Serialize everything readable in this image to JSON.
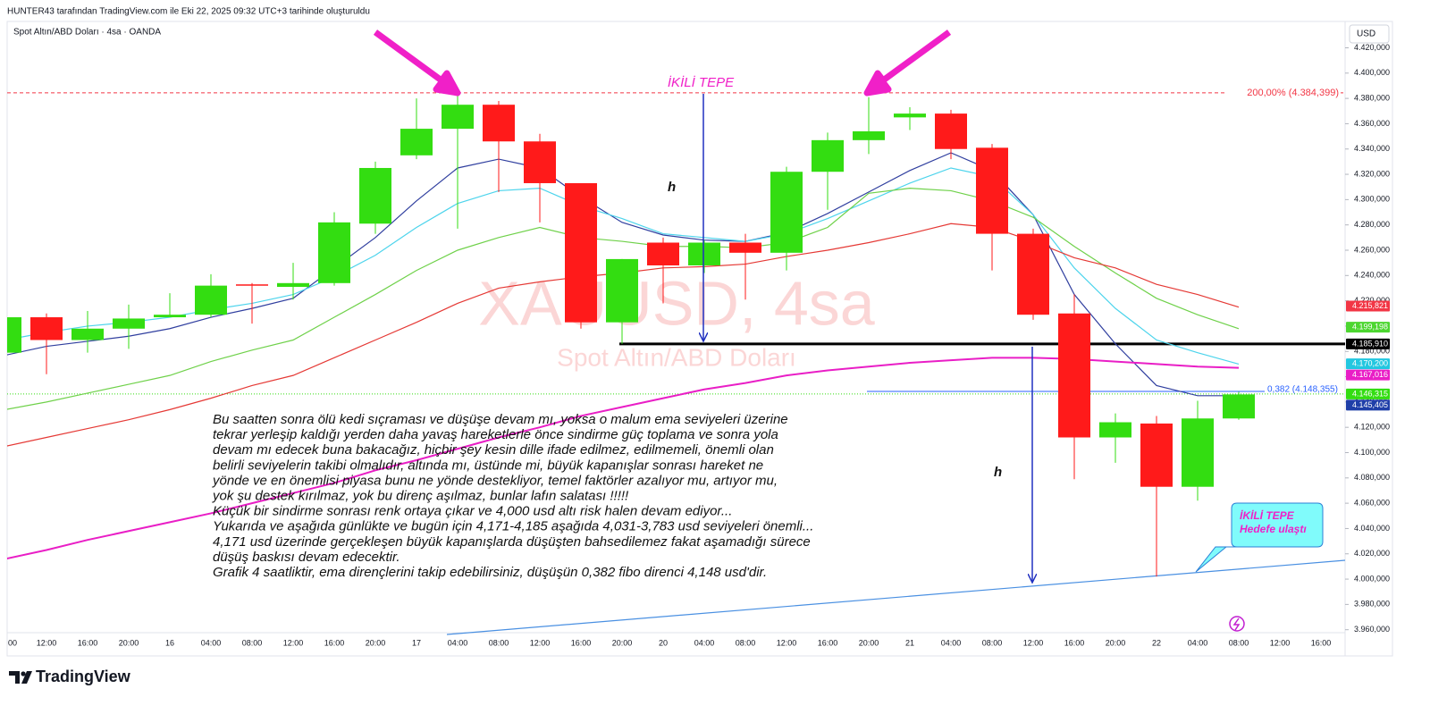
{
  "header": "HUNTER43 tarafından TradingView.com ile Eki 22, 2025 09:32 UTC+3 tarihinde oluşturuldu",
  "symbol": "Spot Altın/ABD Doları · 4sa · OANDA",
  "currency": "USD",
  "brand": "TradingView",
  "chart_data": {
    "type": "candlestick",
    "watermark": {
      "title": "XAUUSD, 4sa",
      "subtitle": "Spot Altın/ABD Doları"
    },
    "categories": [
      "00",
      "12:00",
      "16:00",
      "20:00",
      "16",
      "04:00",
      "08:00",
      "12:00",
      "16:00",
      "20:00",
      "17",
      "04:00",
      "08:00",
      "12:00",
      "16:00",
      "20:00",
      "20",
      "04:00",
      "08:00",
      "12:00",
      "16:00",
      "20:00",
      "21",
      "04:00",
      "08:00",
      "12:00",
      "16:00",
      "20:00",
      "22",
      "04:00",
      "08:00",
      "12:00",
      "16:00"
    ],
    "open": [
      4179,
      4207,
      4189,
      4198,
      4207,
      4209,
      4233,
      4231,
      4234,
      4281,
      4335,
      4356,
      4375,
      4346,
      4313,
      4203,
      4266,
      4248,
      4266,
      4258,
      4322,
      4347,
      4365,
      4368,
      4341,
      4273,
      4210,
      4112,
      4123,
      4073,
      4127,
      null,
      null
    ],
    "high": [
      4210,
      4210,
      4212,
      4217,
      4226,
      4241,
      4234,
      4250,
      4290,
      4330,
      4380,
      4385,
      4378,
      4352,
      4313,
      4253,
      4270,
      4268,
      4273,
      4326,
      4353,
      4381,
      4373,
      4371,
      4344,
      4277,
      4225,
      4131,
      4129,
      4141,
      4148,
      null,
      null
    ],
    "low": [
      4178,
      4162,
      4179,
      4182,
      4207,
      4207,
      4202,
      4221,
      4232,
      4273,
      4332,
      4277,
      4306,
      4282,
      4198,
      4186,
      4218,
      4242,
      4221,
      4244,
      4292,
      4336,
      4355,
      4332,
      4244,
      4205,
      4079,
      4092,
      4002,
      4062,
      4126,
      null,
      null
    ],
    "close": [
      4207,
      4189,
      4198,
      4206,
      4209,
      4232,
      4232,
      4234,
      4282,
      4325,
      4356,
      4375,
      4346,
      4313,
      4203,
      4253,
      4248,
      4266,
      4258,
      4322,
      4347,
      4354,
      4368,
      4340,
      4273,
      4209,
      4112,
      4124,
      4073,
      4127,
      4146,
      null,
      null
    ],
    "up_color": "#33dd11",
    "down_color": "#ff1a1a",
    "series": [
      {
        "color": "#303f9f",
        "values": [
          4177,
          4184,
          4188,
          4192,
          4198,
          4207,
          4214,
          4222,
          4246,
          4270,
          4299,
          4325,
          4332,
          4325,
          4302,
          4282,
          4272,
          4268,
          4267,
          4274,
          4289,
          4306,
          4323,
          4337,
          4323,
          4288,
          4225,
          4186,
          4153,
          4145,
          4145,
          null,
          null
        ]
      },
      {
        "color": "#4dd4ec",
        "values": [
          4189,
          4195,
          4200,
          4203,
          4207,
          4213,
          4218,
          4225,
          4239,
          4256,
          4278,
          4297,
          4307,
          4309,
          4295,
          4285,
          4273,
          4270,
          4267,
          4273,
          4285,
          4299,
          4313,
          4325,
          4318,
          4288,
          4246,
          4214,
          4189,
          4179,
          4170,
          null,
          null
        ]
      },
      {
        "color": "#6fd14a",
        "values": [
          4134,
          4140,
          4147,
          4154,
          4161,
          4172,
          4181,
          4189,
          4207,
          4225,
          4244,
          4260,
          4270,
          4278,
          4270,
          4267,
          4263,
          4263,
          4262,
          4266,
          4278,
          4305,
          4309,
          4307,
          4299,
          4286,
          4263,
          4242,
          4222,
          4209,
          4198,
          null,
          null
        ]
      },
      {
        "color": "#e53935",
        "values": [
          4105,
          4112,
          4119,
          4126,
          4134,
          4143,
          4153,
          4161,
          4175,
          4189,
          4203,
          4218,
          4230,
          4235,
          4239,
          4242,
          4246,
          4247,
          4249,
          4255,
          4260,
          4266,
          4273,
          4281,
          4278,
          4267,
          4254,
          4246,
          4233,
          4225,
          4215,
          null,
          null
        ]
      },
      {
        "color": "#e91ec6",
        "values": [
          4016,
          4023,
          4031,
          4038,
          4045,
          4052,
          4060,
          4068,
          4076,
          4086,
          4094,
          4103,
          4112,
          4120,
          4129,
          4136,
          4143,
          4150,
          4155,
          4161,
          4165,
          4168,
          4171,
          4173,
          4175,
          4175,
          4174,
          4172,
          4170,
          4168,
          4167,
          null,
          null
        ]
      }
    ],
    "ylim": [
      3940,
      4426
    ],
    "yticks": [
      {
        "value": 3960,
        "label": "3.960,000"
      },
      {
        "value": 3980,
        "label": "3.980,000"
      },
      {
        "value": 4000,
        "label": "4.000,000"
      },
      {
        "value": 4020,
        "label": "4.020,000"
      },
      {
        "value": 4040,
        "label": "4.040,000"
      },
      {
        "value": 4060,
        "label": "4.060,000"
      },
      {
        "value": 4080,
        "label": "4.080,000"
      },
      {
        "value": 4100,
        "label": "4.100,000"
      },
      {
        "value": 4120,
        "label": "4.120,000"
      },
      {
        "value": 4140,
        "label": "4.140,000"
      },
      {
        "value": 4160,
        "label": "4.160,000"
      },
      {
        "value": 4180,
        "label": "4.180,000"
      },
      {
        "value": 4200,
        "label": "4.200,000"
      },
      {
        "value": 4220,
        "label": "4.220,000"
      },
      {
        "value": 4240,
        "label": "4.240,000"
      },
      {
        "value": 4260,
        "label": "4.260,000"
      },
      {
        "value": 4280,
        "label": "4.280,000"
      },
      {
        "value": 4300,
        "label": "4.300,000"
      },
      {
        "value": 4320,
        "label": "4.320,000"
      },
      {
        "value": 4340,
        "label": "4.340,000"
      },
      {
        "value": 4360,
        "label": "4.360,000"
      },
      {
        "value": 4380,
        "label": "4.380,000"
      },
      {
        "value": 4400,
        "label": "4.400,000"
      },
      {
        "value": 4420,
        "label": "4.420,000"
      }
    ],
    "levels": [
      {
        "value": 4384.399,
        "label": "200,00% (4.384,399)",
        "color": "#f23645"
      },
      {
        "value": 4148.355,
        "label": "0,382 (4.148,355)",
        "color": "#2962ff"
      }
    ],
    "price_labels": [
      {
        "value": 4215.821,
        "label": "4.215,821",
        "color": "#f23645"
      },
      {
        "value": 4199.198,
        "label": "4.199,198",
        "color": "#4cd630"
      },
      {
        "value": 4185.91,
        "label": "4.185,910",
        "color": "#000000",
        "line": "solid"
      },
      {
        "value": 4170.2,
        "label": "4.170,200",
        "color": "#22c7e0"
      },
      {
        "value": 4167.016,
        "label": "4.167,016",
        "color": "#e91ec6"
      },
      {
        "value": 4146.315,
        "label": "4.146,315",
        "color": "#33dd11",
        "line": "dotted"
      },
      {
        "value": 4145.405,
        "label": "4.145,405",
        "color": "#1f3fa8"
      }
    ],
    "annotations": {
      "pattern": "İKİLİ TEPE",
      "heights": [
        "h",
        "h"
      ],
      "callout": [
        "İKİLİ TEPE",
        "Hedefe ulaştı"
      ],
      "text": [
        "Bu saatten sonra ölü kedi sıçraması ve düşüşe devam mı, yoksa o malum ema seviyeleri üzerine",
        "tekrar yerleşip kaldığı yerden daha yavaş hareketlerle önce sindirme güç toplama ve sonra yola",
        "devam mı edecek buna bakacağız, hiçbir şey kesin dille ifade edilmez, edilmemeli, önemli olan",
        "belirli seviyelerin takibi olmalıdır, altında mı, üstünde mi, büyük kapanışlar sonrası hareket ne",
        "yönde ve en önemlisi piyasa bunu ne yönde destekliyor, temel faktörler azalıyor mu, artıyor mu,",
        "yok şu destek kırılmaz, yok bu direnç aşılmaz, bunlar lafın salatası !!!!!",
        "Küçük bir sindirme sonrası renk ortaya çıkar ve 4,000 usd altı risk halen devam ediyor...",
        "Yukarıda ve aşağıda günlükte ve bugün için 4,171-4,185  aşağıda 4,031-3,783 usd seviyeleri önemli...",
        "4,171 usd üzerinde gerçekleşen büyük kapanışlarda düşüşten bahsedilemez fakat aşamadığı sürece",
        "düşüş baskısı devam edecektir.",
        "Grafik 4 saatliktir, ema dirençlerini takip edebilirsiniz, düşüşün 0,382 fibo direnci 4,148 usd'dir."
      ]
    }
  }
}
